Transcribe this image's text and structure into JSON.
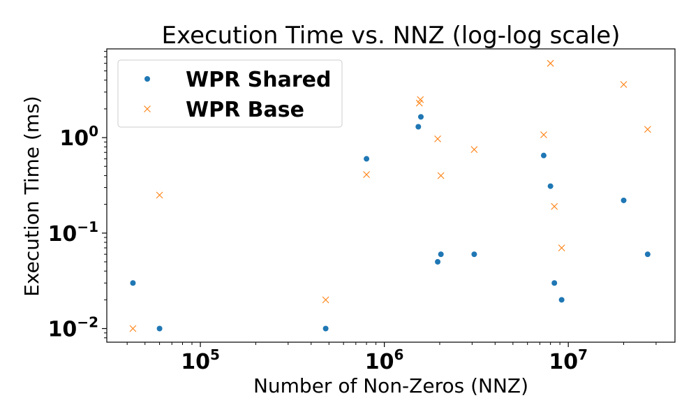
{
  "chart_data": {
    "type": "scatter",
    "title": "Execution Time vs. NNZ (log-log scale)",
    "xlabel": "Number of Non-Zeros (NNZ)",
    "ylabel": "Execution Time (ms)",
    "xscale": "log",
    "yscale": "log",
    "xlim": [
      31000,
      38000000
    ],
    "ylim": [
      0.0072,
      8.5
    ],
    "grid": false,
    "legend_position": "top-left",
    "x_ticks": [
      {
        "value": 100000,
        "base": "10",
        "exp": "5"
      },
      {
        "value": 1000000,
        "base": "10",
        "exp": "6"
      },
      {
        "value": 10000000,
        "base": "10",
        "exp": "7"
      }
    ],
    "y_ticks": [
      {
        "value": 0.01,
        "base": "10",
        "exp": "−2"
      },
      {
        "value": 0.1,
        "base": "10",
        "exp": "−1"
      },
      {
        "value": 1,
        "base": "10",
        "exp": "0"
      }
    ],
    "series": [
      {
        "name": "WPR Shared",
        "marker": "circle",
        "color": "#1f77b4",
        "points": [
          [
            43000,
            0.03
          ],
          [
            60000,
            0.01
          ],
          [
            480000,
            0.01
          ],
          [
            800000,
            0.6
          ],
          [
            1530000,
            1.3
          ],
          [
            1580000,
            1.65
          ],
          [
            1950000,
            0.05
          ],
          [
            2030000,
            0.06
          ],
          [
            3080000,
            0.06
          ],
          [
            7350000,
            0.65
          ],
          [
            8000000,
            0.31
          ],
          [
            8400000,
            0.03
          ],
          [
            9200000,
            0.02
          ],
          [
            20000000,
            0.22
          ],
          [
            27000000,
            0.06
          ]
        ]
      },
      {
        "name": "WPR Base",
        "marker": "x",
        "color": "#ff7f0e",
        "points": [
          [
            43000,
            0.01
          ],
          [
            60000,
            0.25
          ],
          [
            480000,
            0.02
          ],
          [
            800000,
            0.41
          ],
          [
            1550000,
            2.3
          ],
          [
            1570000,
            2.5
          ],
          [
            1950000,
            0.97
          ],
          [
            2030000,
            0.4
          ],
          [
            3080000,
            0.75
          ],
          [
            7350000,
            1.07
          ],
          [
            8000000,
            6.0
          ],
          [
            8400000,
            0.19
          ],
          [
            9200000,
            0.07
          ],
          [
            20000000,
            3.6
          ],
          [
            27000000,
            1.22
          ]
        ]
      }
    ]
  }
}
